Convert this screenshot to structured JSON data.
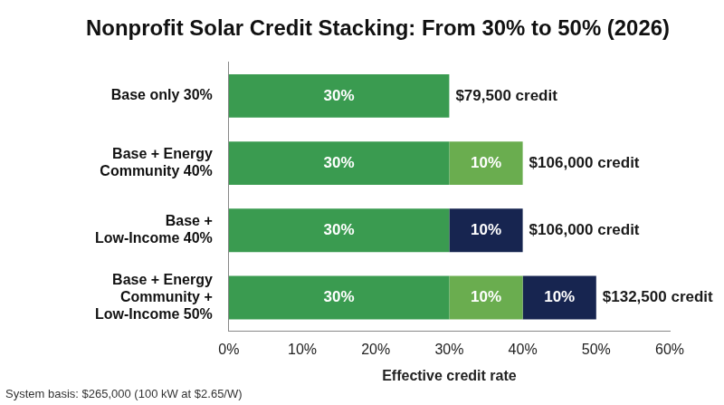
{
  "chart_data": {
    "type": "bar",
    "title": "Nonprofit Solar Credit Stacking: From 30% to 50% (2026)",
    "orientation": "horizontal",
    "stacked": true,
    "data_labels": true,
    "grid": false,
    "categories": [
      "Base only 30%",
      "Base + Energy Community 40%",
      "Base + Low-Income 40%",
      "Base + Energy Community + Low-Income 50%"
    ],
    "series": [
      {
        "color": "#3a9b50",
        "values": [
          30,
          30,
          30,
          30
        ],
        "value_labels": [
          "30%",
          "30%",
          "30%",
          "30%"
        ]
      },
      {
        "color": "#6aad4f",
        "values": [
          null,
          10,
          null,
          10
        ],
        "value_labels": [
          null,
          "10%",
          null,
          "10%"
        ]
      },
      {
        "color": "#172550",
        "values": [
          null,
          null,
          10,
          10
        ],
        "value_labels": [
          null,
          null,
          "10%",
          "10%"
        ]
      }
    ],
    "annotations": [
      "$79,500 credit",
      "$106,000 credit",
      "$106,000 credit",
      "$132,500 credit"
    ],
    "x_label": "Effective credit rate",
    "xlim": [
      0,
      60
    ],
    "xticks": [
      {
        "value": 0,
        "label": "0%"
      },
      {
        "value": 10,
        "label": "10%"
      },
      {
        "value": 20,
        "label": "20%"
      },
      {
        "value": 30,
        "label": "30%"
      },
      {
        "value": 40,
        "label": "40%"
      },
      {
        "value": 50,
        "label": "50%"
      },
      {
        "value": 60,
        "label": "60%"
      }
    ],
    "footnote": "System basis: $265,000 (100 kW at $2.65/W)"
  }
}
